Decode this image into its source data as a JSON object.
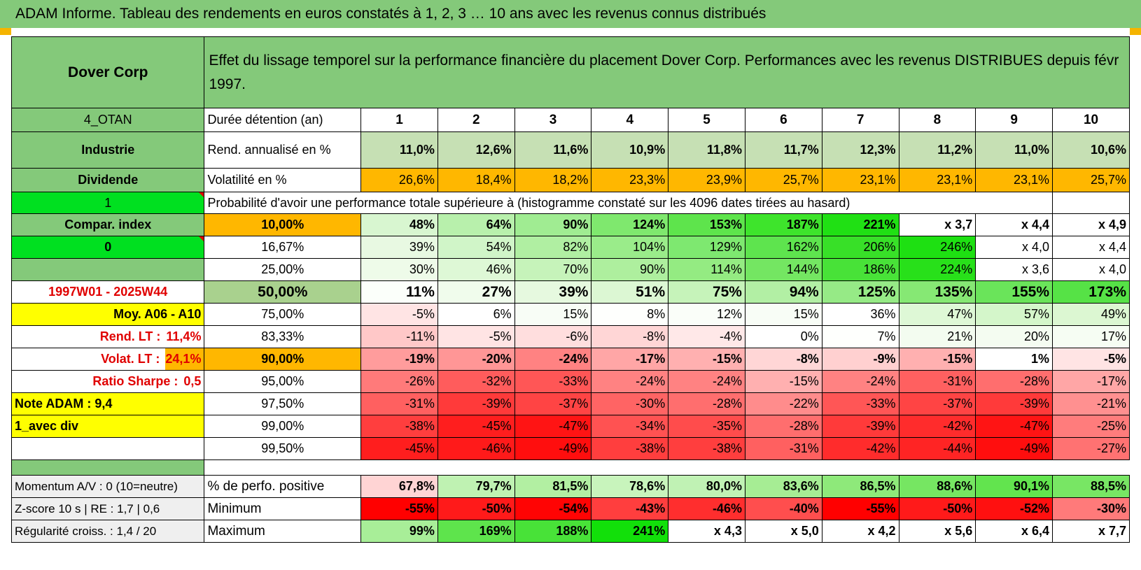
{
  "title": "ADAM Informe. Tableau des rendements en euros constatés à 1, 2, 3 … 10 ans avec les revenus connus distribués",
  "header": {
    "company": "Dover Corp",
    "description": "Effet du lissage temporel sur la performance financière du placement Dover Corp. Performances avec les revenus DISTRIBUES depuis févr 1997."
  },
  "left_labels": {
    "otan": "4_OTAN",
    "sector": "Industrie",
    "dividend": "Dividende",
    "flag1": "1",
    "compar": "Compar. index",
    "flag0": "0",
    "period": "1997W01 - 2025W44",
    "moy": "Moy. A06 - A10",
    "rend_lt_label": "Rend. LT :",
    "rend_lt_value": "11,4%",
    "volat_lt_label": "Volat. LT :",
    "volat_lt_value": "24,1%",
    "sharpe_label": "Ratio Sharpe :",
    "sharpe_value": "0,5",
    "note": "Note ADAM : 9,4",
    "avec_div": "1_avec div"
  },
  "duration": {
    "label": "Durée détention (an)",
    "years": [
      "1",
      "2",
      "3",
      "4",
      "5",
      "6",
      "7",
      "8",
      "9",
      "10"
    ]
  },
  "rendement": {
    "label": "Rend. annualisé en %",
    "values": [
      "11,0%",
      "12,6%",
      "11,6%",
      "10,9%",
      "11,8%",
      "11,7%",
      "12,3%",
      "11,2%",
      "11,0%",
      "10,6%"
    ]
  },
  "volatilite": {
    "label": "Volatilité en %",
    "values": [
      "26,6%",
      "18,4%",
      "18,2%",
      "23,3%",
      "23,9%",
      "25,7%",
      "23,1%",
      "23,1%",
      "23,1%",
      "25,7%"
    ]
  },
  "probability_title": "Probabilité d'avoir une performance totale supérieure à (histogramme constaté sur les 4096 dates tirées au hasard)",
  "prob_rows": [
    {
      "pct": "10,00%",
      "values": [
        "48%",
        "64%",
        "90%",
        "124%",
        "153%",
        "187%",
        "221%",
        "x 3,7",
        "x 4,4",
        "x 4,9"
      ],
      "colors": [
        "#d8f6d0",
        "#b8f0ac",
        "#a0ec92",
        "#7fe86e",
        "#5ee44c",
        "#3ee42c",
        "#20e014",
        "#ffffff",
        "#ffffff",
        "#ffffff"
      ]
    },
    {
      "pct": "16,67%",
      "values": [
        "39%",
        "54%",
        "82%",
        "104%",
        "129%",
        "162%",
        "206%",
        "246%",
        "x 4,0",
        "x 4,4"
      ],
      "colors": [
        "#e8f9e2",
        "#d0f5c8",
        "#b0efa2",
        "#9aec8a",
        "#7ee870",
        "#5ee44e",
        "#38e028",
        "#1ee012",
        "#ffffff",
        "#ffffff"
      ]
    },
    {
      "pct": "25,00%",
      "values": [
        "30%",
        "46%",
        "70%",
        "90%",
        "114%",
        "144%",
        "186%",
        "224%",
        "x 3,6",
        "x 4,0"
      ],
      "colors": [
        "#eefbe9",
        "#def8d6",
        "#c6f3ba",
        "#aeef9e",
        "#94eb82",
        "#74e662",
        "#48e238",
        "#28e01a",
        "#ffffff",
        "#ffffff"
      ]
    },
    {
      "pct": "50,00%",
      "values": [
        "11%",
        "27%",
        "39%",
        "51%",
        "75%",
        "94%",
        "125%",
        "135%",
        "155%",
        "173%"
      ],
      "colors": [
        "#fbfffa",
        "#f0fcec",
        "#e6f9df",
        "#dcf7d3",
        "#c6f3ba",
        "#b2efa4",
        "#96ea86",
        "#86e874",
        "#6ae45a",
        "#56e246"
      ]
    },
    {
      "pct": "75,00%",
      "values": [
        "-5%",
        "6%",
        "15%",
        "8%",
        "12%",
        "15%",
        "36%",
        "47%",
        "57%",
        "49%"
      ],
      "colors": [
        "#ffe4e4",
        "#ffffff",
        "#f8fdf6",
        "#fefffd",
        "#fafef9",
        "#f8fdf6",
        "#eafaе4",
        "#def8d6",
        "#d4f6ca",
        "#dcf7d2"
      ]
    },
    {
      "pct": "83,33%",
      "values": [
        "-11%",
        "-5%",
        "-6%",
        "-8%",
        "-4%",
        "0%",
        "7%",
        "21%",
        "20%",
        "17%"
      ],
      "colors": [
        "#ffc8c8",
        "#ffe4e4",
        "#ffdede",
        "#ffd6d6",
        "#ffe8e8",
        "#ffffff",
        "#fefffd",
        "#f3fcf0",
        "#f4fcf1",
        "#f6fdf3"
      ]
    },
    {
      "pct": "90,00%",
      "values": [
        "-19%",
        "-20%",
        "-24%",
        "-17%",
        "-15%",
        "-8%",
        "-9%",
        "-15%",
        "1%",
        "-5%"
      ],
      "colors": [
        "#ff9c9c",
        "#ff9696",
        "#ff8282",
        "#ffa6a6",
        "#ffb0b0",
        "#ffd6d6",
        "#ffd0d0",
        "#ffb0b0",
        "#ffffff",
        "#ffe4e4"
      ]
    },
    {
      "pct": "95,00%",
      "values": [
        "-26%",
        "-32%",
        "-33%",
        "-24%",
        "-24%",
        "-15%",
        "-24%",
        "-31%",
        "-28%",
        "-17%"
      ],
      "colors": [
        "#ff7a7a",
        "#ff5c5c",
        "#ff5656",
        "#ff8282",
        "#ff8282",
        "#ffb0b0",
        "#ff8282",
        "#ff6060",
        "#ff6e6e",
        "#ffa6a6"
      ]
    },
    {
      "pct": "97,50%",
      "values": [
        "-31%",
        "-39%",
        "-37%",
        "-30%",
        "-28%",
        "-22%",
        "-33%",
        "-37%",
        "-39%",
        "-21%"
      ],
      "colors": [
        "#ff6060",
        "#ff3a3a",
        "#ff4444",
        "#ff6464",
        "#ff6e6e",
        "#ff8c8c",
        "#ff5656",
        "#ff4444",
        "#ff3a3a",
        "#ff9090"
      ]
    },
    {
      "pct": "99,00%",
      "values": [
        "-38%",
        "-45%",
        "-47%",
        "-34%",
        "-35%",
        "-28%",
        "-39%",
        "-42%",
        "-47%",
        "-25%"
      ],
      "colors": [
        "#ff3e3e",
        "#ff1e1e",
        "#ff1414",
        "#ff5252",
        "#ff4c4c",
        "#ff6e6e",
        "#ff3a3a",
        "#ff2c2c",
        "#ff1414",
        "#ff7c7c"
      ]
    },
    {
      "pct": "99,50%",
      "values": [
        "-45%",
        "-46%",
        "-49%",
        "-38%",
        "-38%",
        "-31%",
        "-42%",
        "-44%",
        "-49%",
        "-27%"
      ],
      "colors": [
        "#ff1e1e",
        "#ff1a1a",
        "#ff0e0e",
        "#ff3e3e",
        "#ff3e3e",
        "#ff6060",
        "#ff2c2c",
        "#ff2424",
        "#ff0e0e",
        "#ff7272"
      ]
    }
  ],
  "bottom_rows": [
    {
      "left": "Momentum A/V : 0 (10=neutre)",
      "label": "% de perfo. positive",
      "values": [
        "67,8%",
        "79,7%",
        "81,5%",
        "78,6%",
        "80,0%",
        "83,6%",
        "86,5%",
        "88,6%",
        "90,1%",
        "88,5%"
      ],
      "colors": [
        "#ffd4d4",
        "#bff2b2",
        "#b2efa2",
        "#c8f4bc",
        "#c0f2b4",
        "#a6ed94",
        "#8ee97a",
        "#76e662",
        "#62e44e",
        "#78e664"
      ]
    },
    {
      "left": "Z-score 10 s | RE : 1,7 | 0,6",
      "label": "Minimum",
      "values": [
        "-55%",
        "-50%",
        "-54%",
        "-43%",
        "-46%",
        "-40%",
        "-55%",
        "-50%",
        "-52%",
        "-30%"
      ],
      "colors": [
        "#ff0000",
        "#ff1a1a",
        "#ff0404",
        "#ff3e3e",
        "#ff2e2e",
        "#ff4e4e",
        "#ff0000",
        "#ff1a1a",
        "#ff1010",
        "#ff7a7a"
      ]
    },
    {
      "left": "Régularité croiss. : 1,4 / 20",
      "label": "Maximum",
      "values": [
        "99%",
        "169%",
        "188%",
        "241%",
        "x 4,3",
        "x 5,0",
        "x 4,2",
        "x 5,6",
        "x 6,4",
        "x 7,7"
      ],
      "colors": [
        "#a8ee98",
        "#5ee44c",
        "#48e238",
        "#12e00a",
        "#ffffff",
        "#ffffff",
        "#ffffff",
        "#ffffff",
        "#ffffff",
        "#ffffff"
      ]
    }
  ],
  "colors": {
    "header_green": "#84c97a",
    "light_green": "#c6e0b4",
    "orange": "#ffb700",
    "bright_green": "#00e020",
    "yellow": "#ffff00",
    "red_text": "#e00000"
  }
}
